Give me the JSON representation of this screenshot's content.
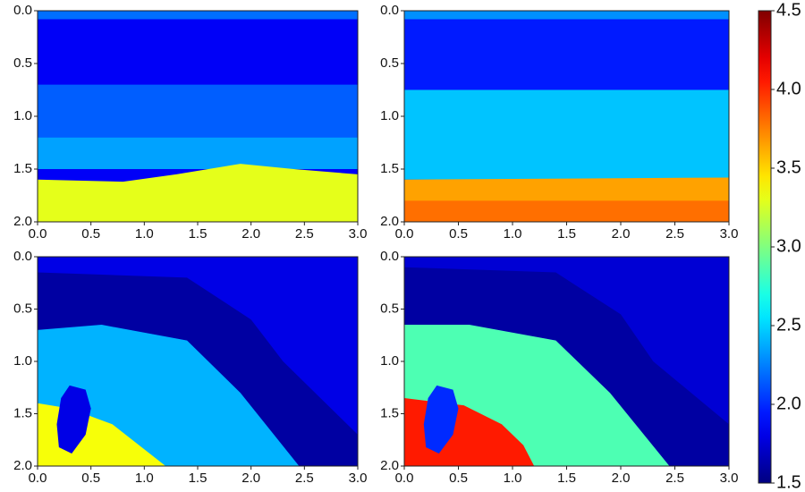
{
  "chart_data": [
    {
      "type": "heatmap",
      "xlim": [
        0,
        3
      ],
      "ylim": [
        2,
        0
      ],
      "xticks": [
        {
          "value": 0,
          "label": "0.0"
        },
        0.5,
        {
          "value": 1,
          "label": "1.0"
        },
        1.5,
        {
          "value": 2,
          "label": "2.0"
        },
        2.5,
        {
          "value": 3,
          "label": "3.0"
        }
      ],
      "yticks": [
        {
          "value": 0,
          "label": "0.0"
        },
        0.5,
        {
          "value": 1,
          "label": "1.0"
        },
        1.5,
        {
          "value": 2,
          "label": "2.0"
        }
      ],
      "regions": [
        {
          "value": 1.85,
          "points": [
            [
              0,
              0
            ],
            [
              3,
              0
            ],
            [
              3,
              2
            ],
            [
              0,
              2
            ]
          ]
        },
        {
          "value": 2.2,
          "points": [
            [
              0,
              0
            ],
            [
              3,
              0
            ],
            [
              3,
              0.08
            ],
            [
              0,
              0.08
            ]
          ]
        },
        {
          "value": 2.15,
          "points": [
            [
              0,
              0.7
            ],
            [
              3,
              0.7
            ],
            [
              3,
              1.2
            ],
            [
              0,
              1.2
            ]
          ]
        },
        {
          "value": 2.35,
          "points": [
            [
              0,
              1.2
            ],
            [
              3,
              1.2
            ],
            [
              3,
              1.5
            ],
            [
              0,
              1.5
            ]
          ]
        },
        {
          "value": 3.3,
          "points": [
            [
              0,
              1.6
            ],
            [
              0.8,
              1.62
            ],
            [
              1.3,
              1.55
            ],
            [
              1.9,
              1.45
            ],
            [
              2.4,
              1.5
            ],
            [
              3,
              1.55
            ],
            [
              3,
              2
            ],
            [
              0,
              2
            ]
          ]
        }
      ]
    },
    {
      "type": "heatmap",
      "xlim": [
        0,
        3
      ],
      "ylim": [
        2,
        0
      ],
      "xticks": [
        {
          "value": 0,
          "label": "0.0"
        },
        0.5,
        {
          "value": 1,
          "label": "1.0"
        },
        1.5,
        {
          "value": 2,
          "label": "2.0"
        },
        2.5,
        {
          "value": 3,
          "label": "3.0"
        }
      ],
      "yticks": [
        {
          "value": 0,
          "label": "0.0"
        },
        0.5,
        {
          "value": 1,
          "label": "1.0"
        },
        1.5,
        {
          "value": 2,
          "label": "2.0"
        }
      ],
      "regions": [
        {
          "value": 1.95,
          "points": [
            [
              0,
              0
            ],
            [
              3,
              0
            ],
            [
              3,
              2
            ],
            [
              0,
              2
            ]
          ]
        },
        {
          "value": 2.3,
          "points": [
            [
              0,
              0
            ],
            [
              3,
              0
            ],
            [
              3,
              0.08
            ],
            [
              0,
              0.08
            ]
          ]
        },
        {
          "value": 2.45,
          "points": [
            [
              0,
              0.75
            ],
            [
              3,
              0.75
            ],
            [
              3,
              1.6
            ],
            [
              0,
              1.6
            ]
          ]
        },
        {
          "value": 3.65,
          "points": [
            [
              0,
              1.6
            ],
            [
              3,
              1.58
            ],
            [
              3,
              2
            ],
            [
              0,
              2
            ]
          ]
        },
        {
          "value": 3.8,
          "points": [
            [
              0,
              1.8
            ],
            [
              3,
              1.8
            ],
            [
              3,
              2
            ],
            [
              0,
              2
            ]
          ]
        }
      ]
    },
    {
      "type": "heatmap",
      "xlim": [
        0,
        3
      ],
      "ylim": [
        2,
        0
      ],
      "xticks": [
        {
          "value": 0,
          "label": "0.0"
        },
        0.5,
        {
          "value": 1,
          "label": "1.0"
        },
        1.5,
        {
          "value": 2,
          "label": "2.0"
        },
        2.5,
        {
          "value": 3,
          "label": "3.0"
        }
      ],
      "yticks": [
        {
          "value": 0,
          "label": "0.0"
        },
        0.5,
        {
          "value": 1,
          "label": "1.0"
        },
        1.5,
        {
          "value": 2,
          "label": "2.0"
        }
      ],
      "regions": [
        {
          "value": 1.8,
          "points": [
            [
              0,
              0
            ],
            [
              3,
              0
            ],
            [
              3,
              2
            ],
            [
              0,
              2
            ]
          ]
        },
        {
          "value": 1.6,
          "points": [
            [
              0,
              0.15
            ],
            [
              1.4,
              0.2
            ],
            [
              2,
              0.6
            ],
            [
              2.3,
              1.0
            ],
            [
              3,
              1.7
            ],
            [
              3,
              2
            ],
            [
              2.45,
              2
            ],
            [
              1.9,
              1.3
            ],
            [
              1.4,
              0.8
            ],
            [
              0.6,
              0.65
            ],
            [
              0,
              0.7
            ]
          ]
        },
        {
          "value": 2.4,
          "points": [
            [
              0,
              0.7
            ],
            [
              0.6,
              0.65
            ],
            [
              1.4,
              0.8
            ],
            [
              1.9,
              1.3
            ],
            [
              2.45,
              2
            ],
            [
              0,
              2
            ]
          ]
        },
        {
          "value": 3.35,
          "points": [
            [
              0,
              1.4
            ],
            [
              0.3,
              1.45
            ],
            [
              0.7,
              1.6
            ],
            [
              1.2,
              2
            ],
            [
              0,
              2
            ]
          ]
        },
        {
          "value": 1.8,
          "points": [
            [
              0.3,
              1.23
            ],
            [
              0.45,
              1.27
            ],
            [
              0.5,
              1.45
            ],
            [
              0.45,
              1.7
            ],
            [
              0.32,
              1.88
            ],
            [
              0.2,
              1.82
            ],
            [
              0.18,
              1.6
            ],
            [
              0.22,
              1.35
            ]
          ]
        }
      ]
    },
    {
      "type": "heatmap",
      "xlim": [
        0,
        3
      ],
      "ylim": [
        2,
        0
      ],
      "xticks": [
        {
          "value": 0,
          "label": "0.0"
        },
        0.5,
        {
          "value": 1,
          "label": "1.0"
        },
        1.5,
        {
          "value": 2,
          "label": "2.0"
        },
        2.5,
        {
          "value": 3,
          "label": "3.0"
        }
      ],
      "yticks": [
        {
          "value": 0,
          "label": "0.0"
        },
        0.5,
        {
          "value": 1,
          "label": "1.0"
        },
        1.5,
        {
          "value": 2,
          "label": "2.0"
        }
      ],
      "regions": [
        {
          "value": 1.75,
          "points": [
            [
              0,
              0
            ],
            [
              3,
              0
            ],
            [
              3,
              2
            ],
            [
              0,
              2
            ]
          ]
        },
        {
          "value": 1.6,
          "points": [
            [
              0,
              0.1
            ],
            [
              1.4,
              0.15
            ],
            [
              2,
              0.55
            ],
            [
              2.3,
              1.0
            ],
            [
              3,
              1.6
            ],
            [
              3,
              2
            ],
            [
              2.45,
              2
            ],
            [
              1.9,
              1.3
            ],
            [
              1.4,
              0.8
            ],
            [
              0.6,
              0.65
            ],
            [
              0,
              0.65
            ]
          ]
        },
        {
          "value": 2.85,
          "points": [
            [
              0,
              0.65
            ],
            [
              0.6,
              0.65
            ],
            [
              1.4,
              0.8
            ],
            [
              1.9,
              1.3
            ],
            [
              2.45,
              2
            ],
            [
              0,
              2
            ]
          ]
        },
        {
          "value": 4.05,
          "points": [
            [
              0,
              1.35
            ],
            [
              0.55,
              1.42
            ],
            [
              0.9,
              1.6
            ],
            [
              1.1,
              1.8
            ],
            [
              1.2,
              2
            ],
            [
              0,
              2
            ]
          ]
        },
        {
          "value": 2.0,
          "points": [
            [
              0.3,
              1.23
            ],
            [
              0.45,
              1.27
            ],
            [
              0.5,
              1.45
            ],
            [
              0.45,
              1.7
            ],
            [
              0.32,
              1.88
            ],
            [
              0.2,
              1.82
            ],
            [
              0.18,
              1.6
            ],
            [
              0.22,
              1.35
            ]
          ]
        }
      ]
    }
  ],
  "colorbar": {
    "colormap": "jet",
    "clim": [
      1.5,
      4.5
    ],
    "ticks": [
      1.5,
      {
        "value": 2,
        "label": "2.0"
      },
      2.5,
      {
        "value": 3,
        "label": "3.0"
      },
      3.5,
      {
        "value": 4,
        "label": "4.0"
      },
      4.5
    ]
  }
}
